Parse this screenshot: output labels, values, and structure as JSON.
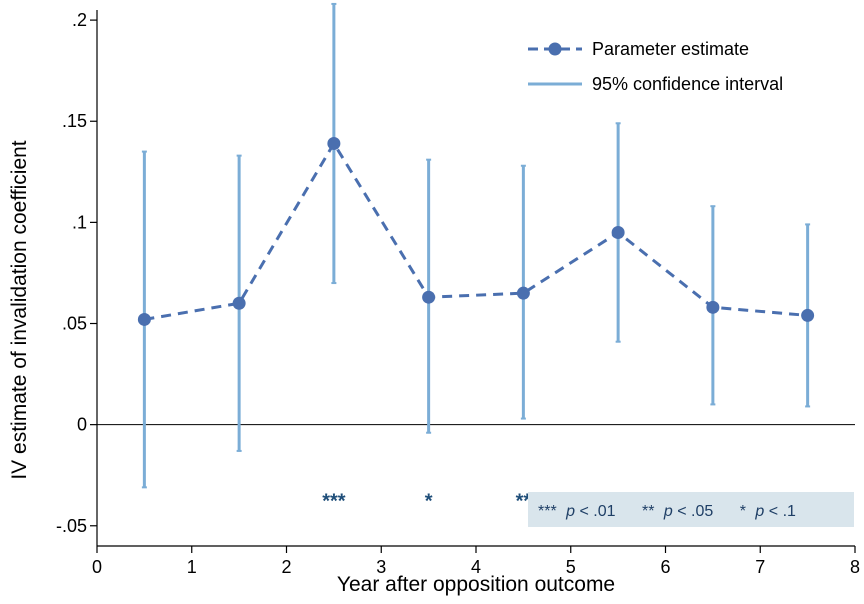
{
  "chart_data": {
    "type": "line",
    "title": "",
    "xlabel": "Year after opposition outcome",
    "ylabel": "IV estimate of invalidation coefficient",
    "xlim": [
      0,
      8
    ],
    "ylim": [
      -0.06,
      0.205
    ],
    "x_ticks": [
      0,
      1,
      2,
      3,
      4,
      5,
      6,
      7,
      8
    ],
    "x_tick_labels": [
      "0",
      "1",
      "2",
      "3",
      "4",
      "5",
      "6",
      "7",
      "8"
    ],
    "y_ticks": [
      -0.05,
      0,
      0.05,
      0.1,
      0.15,
      0.2
    ],
    "y_tick_labels": [
      "-.05",
      "0",
      ".05",
      ".1",
      ".15",
      ".2"
    ],
    "zero_line": true,
    "grid": false,
    "legend_position": "top-right",
    "series": [
      {
        "name": "Parameter estimate",
        "style": "dashed line with circle markers",
        "color": "#4a6faf",
        "x": [
          0.5,
          1.5,
          2.5,
          3.5,
          4.5,
          5.5,
          6.5,
          7.5
        ],
        "y": [
          0.052,
          0.06,
          0.139,
          0.063,
          0.065,
          0.095,
          0.058,
          0.054
        ]
      },
      {
        "name": "95% confidence interval",
        "style": "vertical capped intervals",
        "color": "#7badd6",
        "x": [
          0.5,
          1.5,
          2.5,
          3.5,
          4.5,
          5.5,
          6.5,
          7.5
        ],
        "lower": [
          -0.031,
          -0.013,
          0.07,
          -0.004,
          0.003,
          0.041,
          0.01,
          0.009
        ],
        "upper": [
          0.135,
          0.133,
          0.208,
          0.131,
          0.128,
          0.149,
          0.108,
          0.099
        ]
      }
    ],
    "significance": {
      "x": [
        2.5,
        3.5,
        4.5,
        5.5,
        6.5,
        7.5
      ],
      "y": -0.037,
      "labels": [
        "***",
        "*",
        "**",
        "***",
        "**",
        "**"
      ]
    },
    "note": {
      "items": [
        {
          "stars": "***",
          "p": "p",
          "rest": " < .01"
        },
        {
          "stars": "**",
          "p": "p",
          "rest": " < .05"
        },
        {
          "stars": "*",
          "p": "p",
          "rest": " < .1"
        }
      ],
      "background": "#d9e5ec"
    },
    "colors": {
      "estimate": "#4a6faf",
      "ci": "#7badd6",
      "stars": "#1f4e79"
    }
  }
}
